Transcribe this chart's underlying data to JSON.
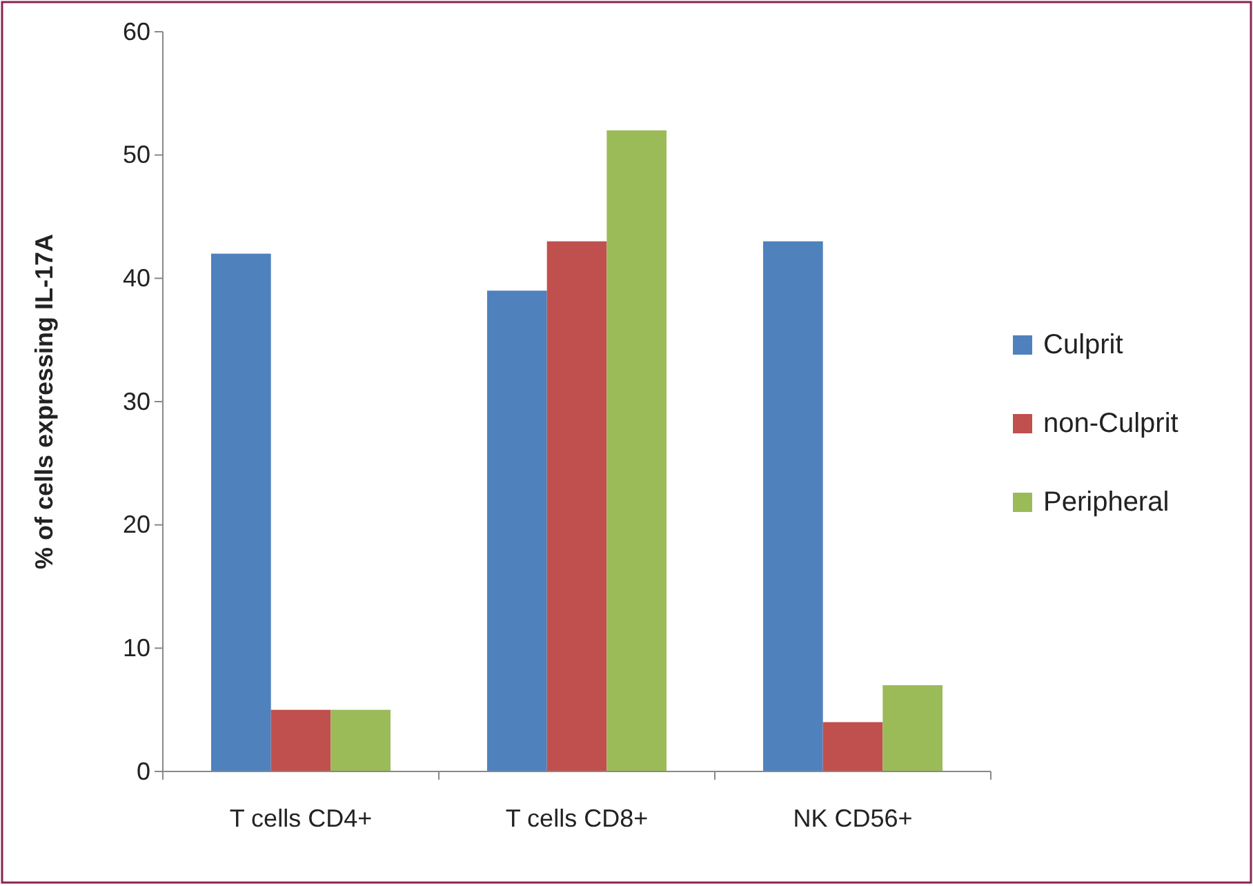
{
  "chart_data": {
    "type": "bar",
    "ylabel": "% of cells expressing IL-17A",
    "categories": [
      "T cells CD4+",
      "T cells CD8+",
      "NK CD56+"
    ],
    "series": [
      {
        "name": "Culprit",
        "color": "#4f81bd",
        "values": [
          42,
          39,
          43
        ]
      },
      {
        "name": "non-Culprit",
        "color": "#c0504d",
        "values": [
          5,
          43,
          4
        ]
      },
      {
        "name": "Peripheral",
        "color": "#9bbb59",
        "values": [
          5,
          52,
          7
        ]
      }
    ],
    "ylim": [
      0,
      60
    ],
    "yticks": [
      0,
      10,
      20,
      30,
      40,
      50,
      60
    ],
    "grid": false,
    "legend": "right"
  }
}
